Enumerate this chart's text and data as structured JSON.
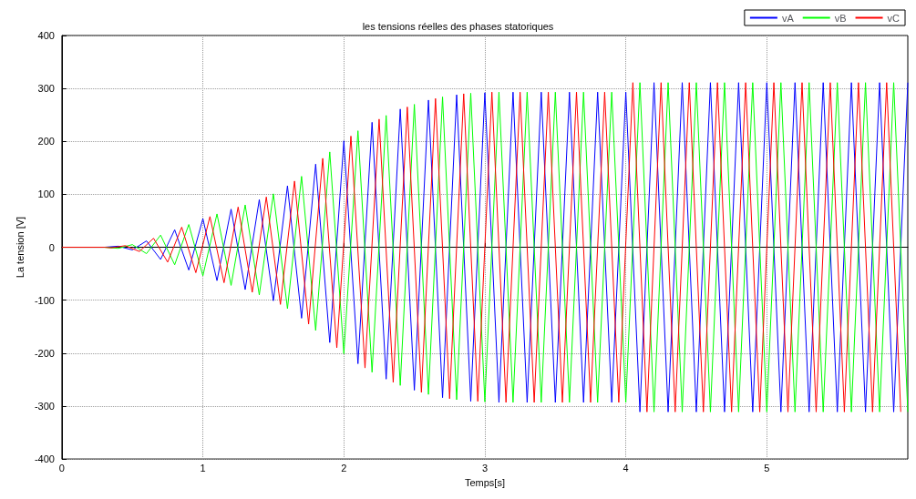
{
  "chart_data": {
    "type": "line",
    "title": "les tensions réelles des phases statoriques",
    "xlabel": "Temps[s]",
    "ylabel": "La tension [V]",
    "xlim": [
      0,
      6
    ],
    "xticks": [
      0,
      1,
      2,
      3,
      4,
      5
    ],
    "ylim": [
      -400,
      400
    ],
    "yticks": [
      -400,
      -300,
      -200,
      -100,
      0,
      100,
      200,
      300,
      400
    ],
    "grid": true,
    "legend": "top right",
    "line_style": "solid",
    "marker": "none",
    "x": [
      0,
      0.3,
      0.4,
      0.5,
      0.6,
      0.7,
      0.8,
      0.9,
      1.0,
      1.1,
      1.2,
      1.3,
      1.4,
      1.5,
      1.6,
      1.7,
      1.8,
      1.9,
      2.0,
      2.1,
      2.2,
      2.3,
      2.4,
      2.5,
      2.6,
      2.7,
      2.8,
      2.9,
      3.0,
      3.1,
      3.2,
      3.3,
      3.4,
      3.5,
      3.6,
      3.7,
      3.8,
      3.9,
      4.0,
      4.1,
      4.2,
      4.3,
      4.4,
      4.5,
      4.6,
      4.7,
      4.8,
      4.9,
      5.0,
      5.1,
      5.2,
      5.3,
      5.4,
      5.5,
      5.6,
      5.7,
      5.8,
      5.9,
      6.0
    ],
    "series": [
      {
        "name": "vA",
        "color": "#0000ff",
        "values": [
          0,
          0,
          2,
          -5,
          12,
          -23,
          33,
          -43,
          54,
          -63,
          72,
          -80,
          90,
          -101,
          116,
          -134,
          157,
          -180,
          201,
          -220,
          236,
          -249,
          261,
          -270,
          278,
          -284,
          288,
          -291,
          292,
          -293,
          293,
          -293,
          293,
          -293,
          293,
          -293,
          293,
          -293,
          293,
          -311,
          311,
          -311,
          311,
          -311,
          311,
          -311,
          311,
          -311,
          311,
          -311,
          311,
          -311,
          311,
          -311,
          311,
          -311,
          311,
          -311,
          311
        ]
      },
      {
        "name": "vB",
        "color": "#00ff00",
        "values": [
          0,
          0,
          -2,
          5,
          -12,
          23,
          -33,
          43,
          -54,
          63,
          -72,
          80,
          -90,
          101,
          -116,
          134,
          -157,
          180,
          -201,
          220,
          -236,
          249,
          -261,
          270,
          -278,
          284,
          -288,
          291,
          -292,
          293,
          -293,
          293,
          -293,
          293,
          -293,
          293,
          -293,
          293,
          -293,
          311,
          -311,
          311,
          -311,
          311,
          -311,
          311,
          -311,
          311,
          -311,
          311,
          -311,
          311,
          -311,
          311,
          -311,
          311,
          -311,
          311,
          -311
        ]
      },
      {
        "name": "vC",
        "color": "#ff0000",
        "x": [
          0,
          0.3,
          0.35,
          0.45,
          0.55,
          0.65,
          0.75,
          0.85,
          0.95,
          1.05,
          1.15,
          1.25,
          1.35,
          1.45,
          1.55,
          1.65,
          1.75,
          1.85,
          1.95,
          2.05,
          2.15,
          2.25,
          2.35,
          2.45,
          2.55,
          2.65,
          2.75,
          2.85,
          2.95,
          3.05,
          3.15,
          3.25,
          3.35,
          3.45,
          3.55,
          3.65,
          3.75,
          3.85,
          3.95,
          4.05,
          4.15,
          4.25,
          4.35,
          4.45,
          4.55,
          4.65,
          4.75,
          4.85,
          4.95,
          5.05,
          5.15,
          5.25,
          5.35,
          5.45,
          5.55,
          5.65,
          5.75,
          5.85,
          5.95
        ],
        "values": [
          0,
          0,
          -1,
          3,
          -8,
          17,
          -28,
          38,
          -48,
          58,
          -67,
          76,
          -85,
          95,
          -108,
          125,
          -145,
          168,
          -190,
          210,
          -228,
          242,
          -255,
          265,
          -274,
          281,
          -286,
          290,
          -291,
          293,
          -293,
          293,
          -293,
          293,
          -293,
          293,
          -293,
          293,
          -293,
          311,
          -311,
          311,
          -311,
          311,
          -311,
          311,
          -311,
          311,
          -311,
          311,
          -311,
          311,
          -311,
          311,
          -311,
          311,
          -311,
          311,
          -311
        ]
      }
    ]
  }
}
